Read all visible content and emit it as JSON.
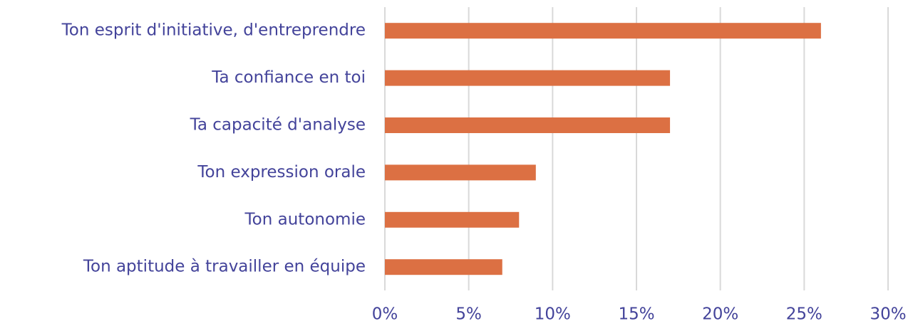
{
  "chart_data": {
    "type": "bar",
    "orientation": "horizontal",
    "categories": [
      "Ton esprit d'initiative, d'entreprendre",
      "Ta confiance en toi",
      "Ta capacité d'analyse",
      "Ton expression orale",
      "Ton autonomie",
      "Ton aptitude à travailler en équipe"
    ],
    "values": [
      26,
      17,
      17,
      9,
      8,
      7
    ],
    "color": "#dc7043",
    "xlim": [
      0,
      30
    ],
    "xticks": [
      {
        "value": 0,
        "label": "0%"
      },
      {
        "value": 5,
        "label": "5%"
      },
      {
        "value": 10,
        "label": "10%"
      },
      {
        "value": 15,
        "label": "15%"
      },
      {
        "value": 20,
        "label": "20%"
      },
      {
        "value": 25,
        "label": "25%"
      },
      {
        "value": 30,
        "label": "30%"
      }
    ],
    "grid": true
  }
}
